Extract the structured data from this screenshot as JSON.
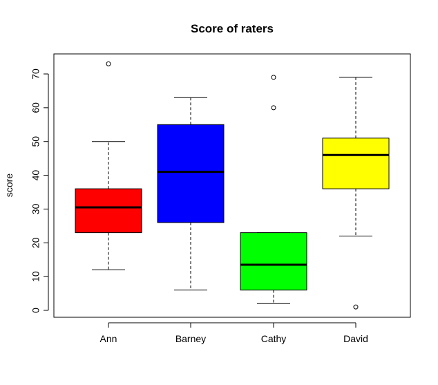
{
  "chart_data": {
    "type": "boxplot",
    "title": "Score of raters",
    "xlabel": "",
    "ylabel": "score",
    "ylim": [
      -2,
      76
    ],
    "yticks": [
      0,
      10,
      20,
      30,
      40,
      50,
      60,
      70
    ],
    "grid": false,
    "categories": [
      "Ann",
      "Barney",
      "Cathy",
      "David"
    ],
    "series": [
      {
        "category": "Ann",
        "color": "#ff0000",
        "whisker_low": 12,
        "q1": 23,
        "median": 30.5,
        "q3": 36,
        "whisker_high": 50,
        "outliers": [
          73
        ]
      },
      {
        "category": "Barney",
        "color": "#0000ff",
        "whisker_low": 6,
        "q1": 26,
        "median": 41,
        "q3": 55,
        "whisker_high": 63,
        "outliers": []
      },
      {
        "category": "Cathy",
        "color": "#00ff00",
        "whisker_low": 2,
        "q1": 6,
        "median": 13.5,
        "q3": 23,
        "whisker_high": 23,
        "outliers": [
          60,
          69
        ]
      },
      {
        "category": "David",
        "color": "#ffff00",
        "whisker_low": 22,
        "q1": 36,
        "median": 46,
        "q3": 51,
        "whisker_high": 69,
        "outliers": [
          1
        ]
      }
    ]
  }
}
